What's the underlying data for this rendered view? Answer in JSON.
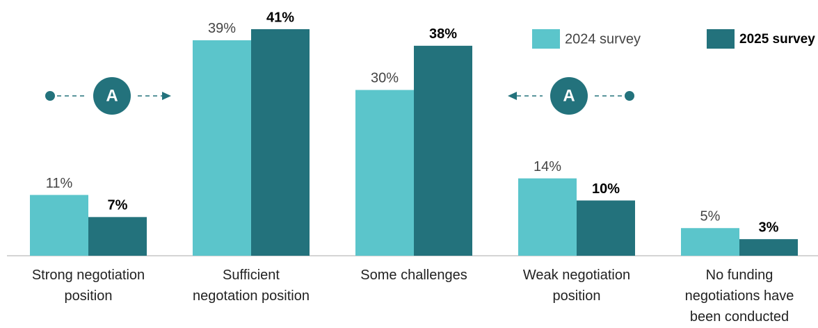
{
  "chart_data": {
    "type": "bar",
    "categories": [
      "Strong negotiation\nposition",
      "Sufficient\nnegotation position",
      "Some challenges",
      "Weak negotiation\nposition",
      "No funding\nnegotiations have\nbeen conducted"
    ],
    "series": [
      {
        "name": "2024 survey",
        "color": "#5bc5cb",
        "values": [
          11,
          39,
          30,
          14,
          5
        ],
        "value_labels": [
          "11%",
          "39%",
          "30%",
          "14%",
          "5%"
        ]
      },
      {
        "name": "2025 survey",
        "color": "#23727c",
        "values": [
          7,
          41,
          38,
          10,
          3
        ],
        "value_labels": [
          "7%",
          "41%",
          "38%",
          "10%",
          "3%"
        ]
      }
    ],
    "ylim": [
      0,
      41
    ],
    "annotations": [
      "A",
      "A"
    ]
  }
}
